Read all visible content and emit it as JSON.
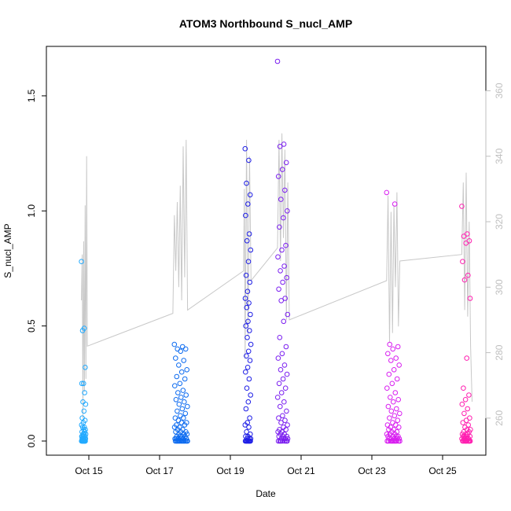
{
  "chart_data": {
    "type": "scatter",
    "title": "ATOM3 Northbound S_nucl_AMP",
    "xlabel": "Date",
    "ylabel": "S_nucl_AMP",
    "xlim": [
      "2011-10-14T00:00",
      "2011-10-26T00:00"
    ],
    "ylim": [
      0,
      1.65
    ],
    "y2lim": [
      253,
      369
    ],
    "x_ticks": [
      {
        "value": "2011-10-15",
        "label": "Oct 15"
      },
      {
        "value": "2011-10-17",
        "label": "Oct 17"
      },
      {
        "value": "2011-10-19",
        "label": "Oct 19"
      },
      {
        "value": "2011-10-21",
        "label": "Oct 21"
      },
      {
        "value": "2011-10-23",
        "label": "Oct 23"
      },
      {
        "value": "2011-10-25",
        "label": "Oct 25"
      }
    ],
    "y_ticks": [
      {
        "value": 0,
        "label": "0.0"
      },
      {
        "value": 0.5,
        "label": "0.5"
      },
      {
        "value": 1.0,
        "label": "1.0"
      },
      {
        "value": 1.5,
        "label": "1.5"
      }
    ],
    "y2_ticks": [
      {
        "value": 260,
        "label": "260"
      },
      {
        "value": 280,
        "label": "280"
      },
      {
        "value": 300,
        "label": "300"
      },
      {
        "value": 320,
        "label": "320"
      },
      {
        "value": 340,
        "label": "340"
      },
      {
        "value": 360,
        "label": "360"
      }
    ],
    "grid": false,
    "legend": "none",
    "colors": {
      "series_gradient": [
        "#22aaff",
        "#0d6bf0",
        "#1e1ee6",
        "#7b1ff0",
        "#d81ff0",
        "#ff1fb0"
      ],
      "line": "#c8c8c8",
      "axis": "#000000",
      "right_axis": "#bfbfbf"
    },
    "clusters": [
      {
        "start": "2011-10-14T19:00",
        "end": "2011-10-14T22:00",
        "color": "#22aaff",
        "values": [
          0.78,
          0.49,
          0.48,
          0.32,
          0.25,
          0.25,
          0.21,
          0.17,
          0.16,
          0.13,
          0.1,
          0.09,
          0.08,
          0.07,
          0.06,
          0.06,
          0.05,
          0.05,
          0.04,
          0.04,
          0.03,
          0.03,
          0.03,
          0.02,
          0.02,
          0.02,
          0.02,
          0.01,
          0.01,
          0.01,
          0.01,
          0.01,
          0.0,
          0.0,
          0.0,
          0.0,
          0.0,
          0.0,
          0.0,
          0.0,
          0.0,
          0.0
        ]
      },
      {
        "start": "2011-10-17T10:00",
        "end": "2011-10-17T19:00",
        "color": "#0d6bf0",
        "values": [
          0.42,
          0.41,
          0.4,
          0.4,
          0.39,
          0.36,
          0.35,
          0.33,
          0.31,
          0.3,
          0.28,
          0.27,
          0.25,
          0.24,
          0.22,
          0.21,
          0.2,
          0.19,
          0.18,
          0.17,
          0.16,
          0.15,
          0.14,
          0.13,
          0.12,
          0.11,
          0.1,
          0.1,
          0.09,
          0.08,
          0.08,
          0.07,
          0.07,
          0.06,
          0.06,
          0.05,
          0.05,
          0.04,
          0.04,
          0.04,
          0.03,
          0.03,
          0.03,
          0.02,
          0.02,
          0.02,
          0.02,
          0.01,
          0.01,
          0.01,
          0.01,
          0.01,
          0.01,
          0.0,
          0.0,
          0.0,
          0.0,
          0.0,
          0.0,
          0.0,
          0.0,
          0.0,
          0.0,
          0.0,
          0.0,
          0.0
        ]
      },
      {
        "start": "2011-10-19T10:00",
        "end": "2011-10-19T14:00",
        "color": "#1e1ee6",
        "values": [
          1.27,
          1.22,
          1.12,
          1.07,
          1.03,
          0.98,
          0.9,
          0.87,
          0.83,
          0.78,
          0.72,
          0.69,
          0.65,
          0.62,
          0.6,
          0.58,
          0.55,
          0.52,
          0.5,
          0.48,
          0.45,
          0.42,
          0.39,
          0.37,
          0.35,
          0.32,
          0.3,
          0.27,
          0.23,
          0.2,
          0.17,
          0.14,
          0.1,
          0.08,
          0.07,
          0.06,
          0.04,
          0.03,
          0.02,
          0.02,
          0.01,
          0.01,
          0.01,
          0.0,
          0.0,
          0.0,
          0.0,
          0.0,
          0.0,
          0.0,
          0.0
        ]
      },
      {
        "start": "2011-10-20T08:00",
        "end": "2011-10-20T15:00",
        "color": "#7b1ff0",
        "values": [
          1.65,
          1.29,
          1.28,
          1.21,
          1.18,
          1.15,
          1.09,
          1.05,
          1.0,
          0.97,
          0.93,
          0.85,
          0.83,
          0.8,
          0.76,
          0.74,
          0.71,
          0.69,
          0.66,
          0.62,
          0.61,
          0.55,
          0.52,
          0.45,
          0.41,
          0.38,
          0.36,
          0.33,
          0.31,
          0.29,
          0.27,
          0.25,
          0.23,
          0.21,
          0.19,
          0.17,
          0.15,
          0.13,
          0.11,
          0.1,
          0.09,
          0.08,
          0.07,
          0.06,
          0.05,
          0.05,
          0.04,
          0.04,
          0.03,
          0.03,
          0.02,
          0.02,
          0.02,
          0.01,
          0.01,
          0.01,
          0.01,
          0.0,
          0.0,
          0.0,
          0.0,
          0.0,
          0.0,
          0.0
        ]
      },
      {
        "start": "2011-10-23T10:00",
        "end": "2011-10-23T19:00",
        "color": "#d81ff0",
        "values": [
          1.08,
          1.03,
          0.42,
          0.41,
          0.4,
          0.38,
          0.36,
          0.35,
          0.33,
          0.31,
          0.29,
          0.27,
          0.25,
          0.23,
          0.21,
          0.19,
          0.18,
          0.17,
          0.15,
          0.14,
          0.13,
          0.12,
          0.11,
          0.1,
          0.09,
          0.08,
          0.07,
          0.07,
          0.06,
          0.06,
          0.05,
          0.05,
          0.04,
          0.04,
          0.03,
          0.03,
          0.03,
          0.02,
          0.02,
          0.02,
          0.02,
          0.01,
          0.01,
          0.01,
          0.01,
          0.01,
          0.0,
          0.0,
          0.0,
          0.0,
          0.0,
          0.0,
          0.0,
          0.0,
          0.0,
          0.0,
          0.0
        ]
      },
      {
        "start": "2011-10-25T13:00",
        "end": "2011-10-25T19:00",
        "color": "#ff1fb0",
        "values": [
          1.02,
          0.9,
          0.89,
          0.87,
          0.86,
          0.78,
          0.72,
          0.7,
          0.62,
          0.36,
          0.23,
          0.2,
          0.18,
          0.16,
          0.14,
          0.12,
          0.1,
          0.09,
          0.08,
          0.07,
          0.06,
          0.05,
          0.05,
          0.04,
          0.04,
          0.03,
          0.03,
          0.03,
          0.02,
          0.02,
          0.02,
          0.02,
          0.01,
          0.01,
          0.01,
          0.01,
          0.01,
          0.0,
          0.0,
          0.0,
          0.0,
          0.0,
          0.0,
          0.0,
          0.0,
          0.0,
          0.0
        ]
      }
    ],
    "line_points": [
      [
        "2011-10-14T19:00",
        296
      ],
      [
        "2011-10-14T19:30",
        310
      ],
      [
        "2011-10-14T20:00",
        260
      ],
      [
        "2011-10-14T20:30",
        314
      ],
      [
        "2011-10-14T21:00",
        268
      ],
      [
        "2011-10-14T21:30",
        325
      ],
      [
        "2011-10-14T22:00",
        272
      ],
      [
        "2011-10-14T22:30",
        340
      ],
      [
        "2011-10-14T23:00",
        282
      ],
      [
        "2011-10-17T09:00",
        292
      ],
      [
        "2011-10-17T10:00",
        322
      ],
      [
        "2011-10-17T11:00",
        305
      ],
      [
        "2011-10-17T12:00",
        326
      ],
      [
        "2011-10-17T13:00",
        300
      ],
      [
        "2011-10-17T14:00",
        331
      ],
      [
        "2011-10-17T15:00",
        296
      ],
      [
        "2011-10-17T16:00",
        343
      ],
      [
        "2011-10-17T17:00",
        303
      ],
      [
        "2011-10-17T18:00",
        345
      ],
      [
        "2011-10-17T19:00",
        293
      ],
      [
        "2011-10-19T09:00",
        305
      ],
      [
        "2011-10-19T09:30",
        330
      ],
      [
        "2011-10-19T10:00",
        278
      ],
      [
        "2011-10-19T11:00",
        345
      ],
      [
        "2011-10-19T12:00",
        285
      ],
      [
        "2011-10-19T13:00",
        340
      ],
      [
        "2011-10-19T14:00",
        302
      ],
      [
        "2011-10-20T08:00",
        312
      ],
      [
        "2011-10-20T09:00",
        345
      ],
      [
        "2011-10-20T10:00",
        308
      ],
      [
        "2011-10-20T11:00",
        347
      ],
      [
        "2011-10-20T12:00",
        315
      ],
      [
        "2011-10-20T13:00",
        342
      ],
      [
        "2011-10-20T14:00",
        290
      ],
      [
        "2011-10-20T15:00",
        332
      ],
      [
        "2011-10-20T16:00",
        290
      ],
      [
        "2011-10-23T10:00",
        302
      ],
      [
        "2011-10-23T11:00",
        328
      ],
      [
        "2011-10-23T12:00",
        283
      ],
      [
        "2011-10-23T13:00",
        323
      ],
      [
        "2011-10-23T14:00",
        286
      ],
      [
        "2011-10-23T15:00",
        325
      ],
      [
        "2011-10-23T16:00",
        300
      ],
      [
        "2011-10-23T17:00",
        329
      ],
      [
        "2011-10-23T18:00",
        288
      ],
      [
        "2011-10-23T19:00",
        308
      ],
      [
        "2011-10-25T13:00",
        310
      ],
      [
        "2011-10-25T14:00",
        332
      ],
      [
        "2011-10-25T15:00",
        293
      ],
      [
        "2011-10-25T16:00",
        335
      ],
      [
        "2011-10-25T17:00",
        291
      ],
      [
        "2011-10-25T18:00",
        320
      ],
      [
        "2011-10-25T19:00",
        282
      ],
      [
        "2011-10-25T20:00",
        265
      ]
    ]
  }
}
